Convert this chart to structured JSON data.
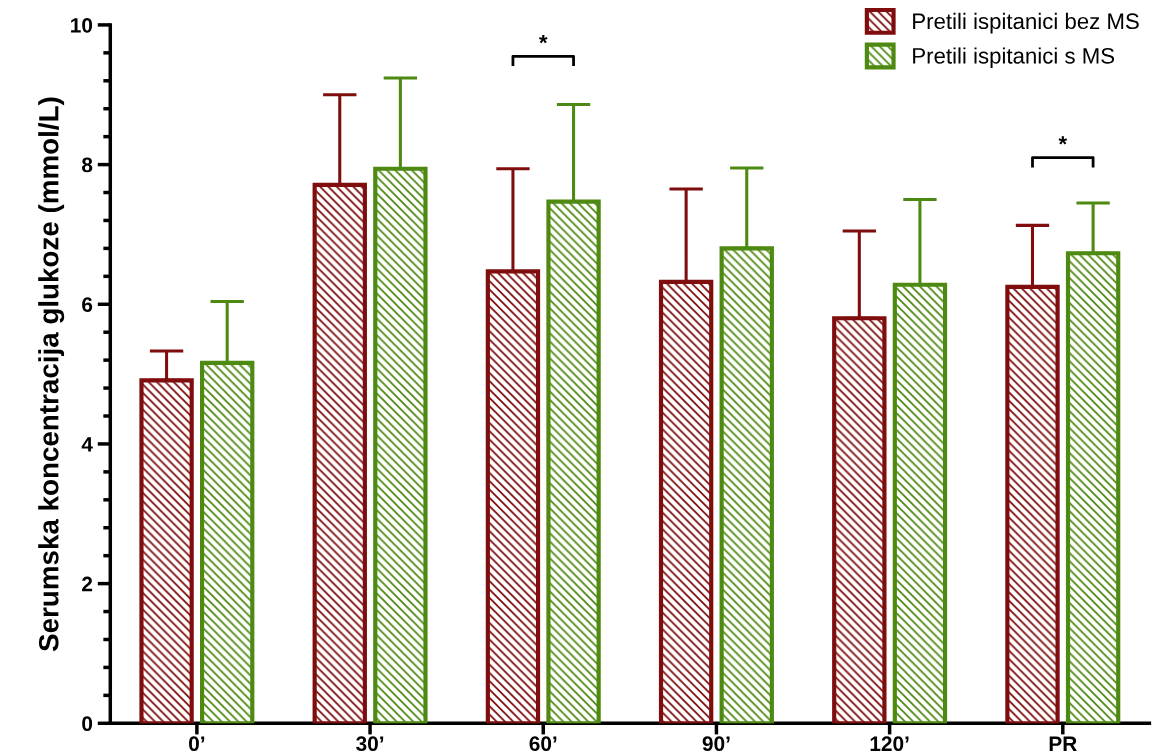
{
  "chart_data": {
    "type": "bar",
    "ylabel": "Serumska koncentracija glukoze (mmol/L)",
    "categories": [
      "0’",
      "30’",
      "60’",
      "90’",
      "120’",
      "PR"
    ],
    "series": [
      {
        "name": "Pretili ispitanici bez MS",
        "color": "#7f0d0d",
        "values": [
          4.91,
          7.71,
          6.47,
          6.32,
          5.8,
          6.25
        ],
        "errors": [
          [
            4.91,
            5.33
          ],
          [
            7.71,
            9.0
          ],
          [
            6.47,
            7.94
          ],
          [
            6.32,
            7.65
          ],
          [
            5.8,
            7.05
          ],
          [
            6.25,
            7.13
          ]
        ]
      },
      {
        "name": "Pretili ispitanici s MS",
        "color": "#4e8a12",
        "values": [
          5.16,
          7.94,
          7.47,
          6.8,
          6.28,
          6.73
        ],
        "errors": [
          [
            5.16,
            6.04
          ],
          [
            7.94,
            9.24
          ],
          [
            7.47,
            8.86
          ],
          [
            6.8,
            7.95
          ],
          [
            6.28,
            7.5
          ],
          [
            6.73,
            7.45
          ]
        ]
      }
    ],
    "ylim": [
      0,
      10
    ],
    "yticks": [
      0,
      {
        "value": 0.4,
        "label": null
      },
      {
        "value": 0.8,
        "label": null
      },
      {
        "value": 1.2,
        "label": null
      },
      {
        "value": 1.6,
        "label": null
      },
      2,
      {
        "value": 2.4,
        "label": null
      },
      {
        "value": 2.8,
        "label": null
      },
      {
        "value": 3.2,
        "label": null
      },
      {
        "value": 3.6,
        "label": null
      },
      4,
      {
        "value": 4.4,
        "label": null
      },
      {
        "value": 4.8,
        "label": null
      },
      {
        "value": 5.2,
        "label": null
      },
      {
        "value": 5.6,
        "label": null
      },
      6,
      {
        "value": 6.4,
        "label": null
      },
      {
        "value": 6.8,
        "label": null
      },
      {
        "value": 7.2,
        "label": null
      },
      {
        "value": 7.6,
        "label": null
      },
      8,
      {
        "value": 8.4,
        "label": null
      },
      {
        "value": 8.8,
        "label": null
      },
      {
        "value": 9.2,
        "label": null
      },
      {
        "value": 9.6,
        "label": null
      },
      10
    ],
    "annotations": [
      "*",
      "*"
    ],
    "grid": false,
    "legend": "top right"
  }
}
